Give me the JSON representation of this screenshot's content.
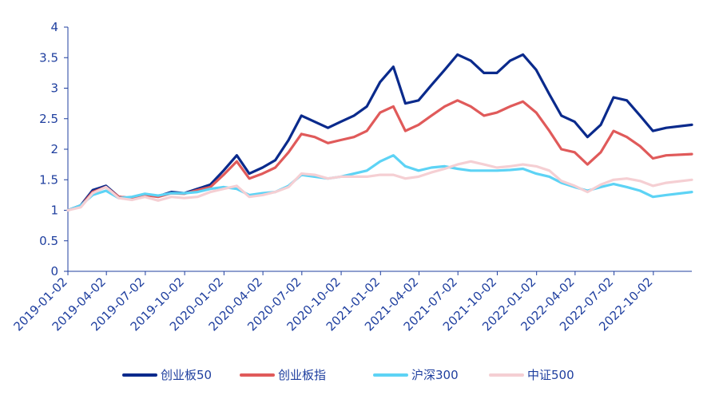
{
  "chart_data": {
    "type": "line",
    "title": "",
    "xlabel": "",
    "ylabel": "",
    "ylim": [
      0,
      4
    ],
    "yticks": [
      "0",
      "0.5",
      "1",
      "1.5",
      "2",
      "2.5",
      "3",
      "3.5",
      "4"
    ],
    "xticks": [
      "2019-01-02",
      "2019-04-02",
      "2019-07-02",
      "2019-10-02",
      "2020-01-02",
      "2020-04-02",
      "2020-07-02",
      "2020-10-02",
      "2021-01-02",
      "2021-04-02",
      "2021-07-02",
      "2021-10-02",
      "2022-01-02",
      "2022-04-02",
      "2022-07-02",
      "2022-10-02"
    ],
    "x": [
      "2019-01-02",
      "2019-02-01",
      "2019-03-01",
      "2019-04-01",
      "2019-05-01",
      "2019-06-01",
      "2019-07-01",
      "2019-08-01",
      "2019-09-01",
      "2019-10-01",
      "2019-11-01",
      "2019-12-01",
      "2020-01-01",
      "2020-02-01",
      "2020-03-01",
      "2020-04-01",
      "2020-05-01",
      "2020-06-01",
      "2020-07-01",
      "2020-08-01",
      "2020-09-01",
      "2020-10-01",
      "2020-11-01",
      "2020-12-01",
      "2021-01-01",
      "2021-02-01",
      "2021-03-01",
      "2021-04-01",
      "2021-05-01",
      "2021-06-01",
      "2021-07-01",
      "2021-08-01",
      "2021-09-01",
      "2021-10-01",
      "2021-11-01",
      "2021-12-01",
      "2022-01-01",
      "2022-02-01",
      "2022-03-01",
      "2022-04-01",
      "2022-05-01",
      "2022-06-01",
      "2022-07-01",
      "2022-08-01",
      "2022-09-01",
      "2022-10-01",
      "2022-11-01",
      "2022-12-31"
    ],
    "series": [
      {
        "name": "创业板50",
        "color": "#0a2a8c",
        "values": [
          1.0,
          1.08,
          1.33,
          1.4,
          1.22,
          1.2,
          1.26,
          1.23,
          1.3,
          1.28,
          1.35,
          1.42,
          1.65,
          1.9,
          1.6,
          1.7,
          1.82,
          2.15,
          2.55,
          2.45,
          2.35,
          2.45,
          2.55,
          2.7,
          3.1,
          3.35,
          2.75,
          2.8,
          3.05,
          3.3,
          3.55,
          3.45,
          3.25,
          3.25,
          3.45,
          3.55,
          3.3,
          2.9,
          2.55,
          2.45,
          2.2,
          2.4,
          2.85,
          2.8,
          2.55,
          2.3,
          2.35,
          2.4
        ]
      },
      {
        "name": "创业板指",
        "color": "#e05a5a",
        "values": [
          1.0,
          1.07,
          1.3,
          1.38,
          1.22,
          1.2,
          1.25,
          1.22,
          1.28,
          1.27,
          1.33,
          1.38,
          1.58,
          1.8,
          1.52,
          1.6,
          1.7,
          1.95,
          2.25,
          2.2,
          2.1,
          2.15,
          2.2,
          2.3,
          2.6,
          2.7,
          2.3,
          2.4,
          2.55,
          2.7,
          2.8,
          2.7,
          2.55,
          2.6,
          2.7,
          2.78,
          2.6,
          2.3,
          2.0,
          1.95,
          1.75,
          1.95,
          2.3,
          2.2,
          2.05,
          1.85,
          1.9,
          1.92
        ]
      },
      {
        "name": "沪深300",
        "color": "#5dd3f5",
        "values": [
          1.0,
          1.08,
          1.25,
          1.32,
          1.2,
          1.22,
          1.27,
          1.24,
          1.28,
          1.28,
          1.3,
          1.35,
          1.38,
          1.35,
          1.25,
          1.28,
          1.3,
          1.4,
          1.58,
          1.55,
          1.52,
          1.55,
          1.6,
          1.65,
          1.8,
          1.9,
          1.72,
          1.65,
          1.7,
          1.72,
          1.68,
          1.65,
          1.65,
          1.65,
          1.66,
          1.68,
          1.6,
          1.55,
          1.45,
          1.38,
          1.32,
          1.38,
          1.43,
          1.38,
          1.32,
          1.22,
          1.25,
          1.3
        ]
      },
      {
        "name": "中证500",
        "color": "#f5cfd3",
        "values": [
          1.0,
          1.05,
          1.28,
          1.38,
          1.2,
          1.17,
          1.22,
          1.16,
          1.22,
          1.2,
          1.22,
          1.3,
          1.35,
          1.4,
          1.22,
          1.25,
          1.3,
          1.38,
          1.6,
          1.58,
          1.52,
          1.55,
          1.55,
          1.55,
          1.58,
          1.58,
          1.52,
          1.55,
          1.62,
          1.68,
          1.75,
          1.8,
          1.75,
          1.7,
          1.72,
          1.75,
          1.72,
          1.65,
          1.48,
          1.4,
          1.3,
          1.42,
          1.5,
          1.52,
          1.48,
          1.4,
          1.45,
          1.5
        ]
      }
    ],
    "legend_position": "bottom",
    "grid": false
  }
}
